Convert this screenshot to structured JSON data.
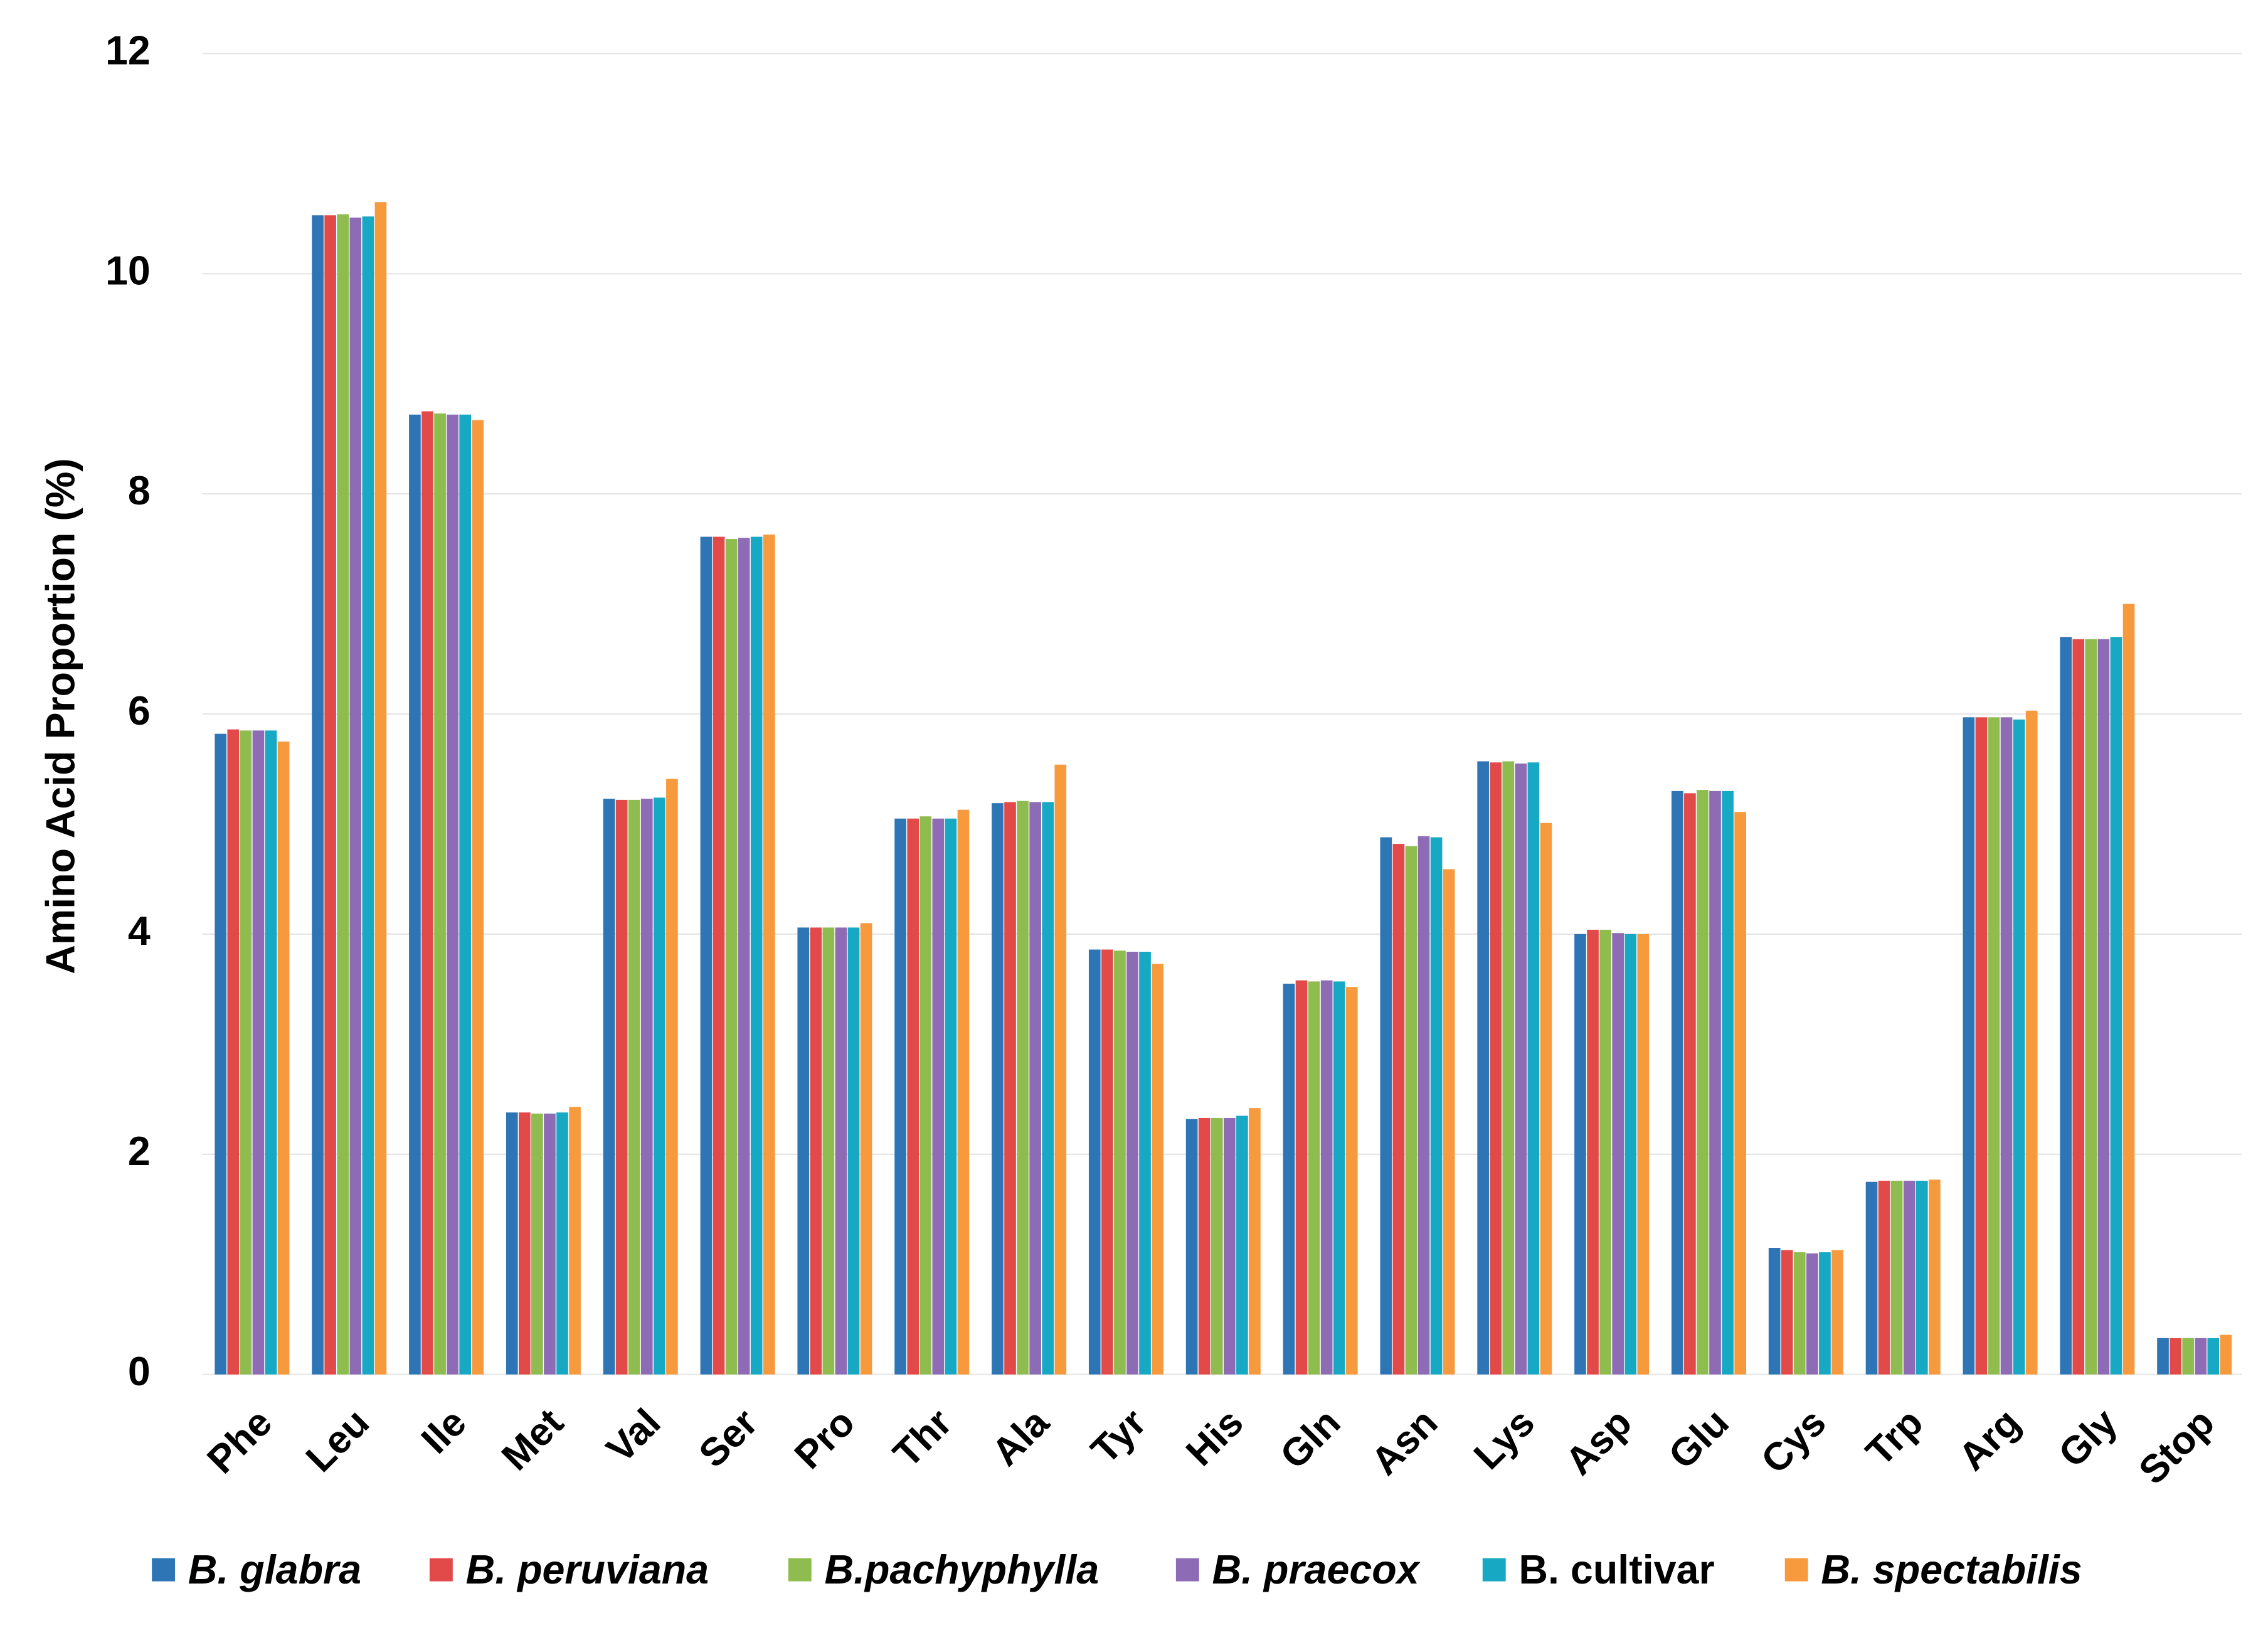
{
  "chart_data": {
    "type": "bar",
    "y_label": "Amino Acid Proportion (%)",
    "categories": [
      "Phe",
      "Leu",
      "Ile",
      "Met",
      "Val",
      "Ser",
      "Pro",
      "Thr",
      "Ala",
      "Tyr",
      "His",
      "Gln",
      "Asn",
      "Lys",
      "Asp",
      "Glu",
      "Cys",
      "Trp",
      "Arg",
      "Gly",
      "Stop"
    ],
    "series": [
      {
        "name": "B. glabra",
        "color": "#2e75b6",
        "values": [
          5.82,
          10.53,
          8.72,
          2.38,
          5.23,
          7.61,
          4.06,
          5.05,
          5.19,
          3.86,
          2.32,
          3.55,
          4.88,
          5.57,
          4.0,
          5.3,
          1.15,
          1.75,
          5.97,
          6.7,
          0.33
        ]
      },
      {
        "name": "B. peruviana",
        "color": "#e24a4a",
        "values": [
          5.86,
          10.53,
          8.75,
          2.38,
          5.22,
          7.61,
          4.06,
          5.05,
          5.2,
          3.86,
          2.33,
          3.58,
          4.82,
          5.56,
          4.04,
          5.28,
          1.13,
          1.76,
          5.97,
          6.68,
          0.33
        ]
      },
      {
        "name": "B.pachyphylla",
        "color": "#8fbc4f",
        "values": [
          5.85,
          10.54,
          8.73,
          2.37,
          5.22,
          7.59,
          4.06,
          5.07,
          5.21,
          3.85,
          2.33,
          3.57,
          4.8,
          5.57,
          4.04,
          5.31,
          1.11,
          1.76,
          5.97,
          6.68,
          0.33
        ]
      },
      {
        "name": "B. praecox",
        "color": "#8e6bb5",
        "values": [
          5.85,
          10.51,
          8.72,
          2.37,
          5.23,
          7.6,
          4.06,
          5.05,
          5.2,
          3.84,
          2.33,
          3.58,
          4.89,
          5.55,
          4.01,
          5.3,
          1.1,
          1.76,
          5.97,
          6.68,
          0.33
        ]
      },
      {
        "name": "B. cultivar",
        "color": "#17a8c4",
        "values": [
          5.85,
          10.52,
          8.72,
          2.38,
          5.24,
          7.61,
          4.06,
          5.05,
          5.2,
          3.84,
          2.35,
          3.57,
          4.88,
          5.56,
          4.0,
          5.3,
          1.11,
          1.76,
          5.95,
          6.7,
          0.33
        ]
      },
      {
        "name": "B. spectabilis",
        "color": "#f79a3e",
        "values": [
          5.75,
          10.65,
          8.67,
          2.43,
          5.41,
          7.63,
          4.1,
          5.13,
          5.54,
          3.73,
          2.42,
          3.52,
          4.59,
          5.01,
          4.0,
          5.11,
          1.13,
          1.77,
          6.03,
          7.0,
          0.36
        ]
      }
    ],
    "ylim": [
      0,
      12
    ],
    "yticks": [
      0,
      2,
      4,
      6,
      8,
      10,
      12
    ],
    "grid": true,
    "legend": "bottom"
  }
}
